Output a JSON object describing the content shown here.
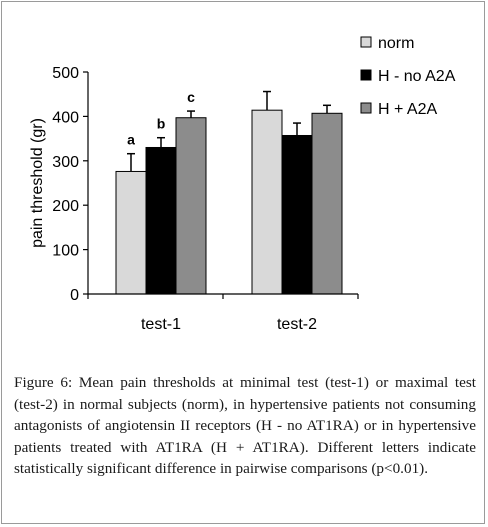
{
  "chart_data": {
    "type": "bar",
    "categories": [
      "test-1",
      "test-2"
    ],
    "series": [
      {
        "name": "norm",
        "values": [
          276,
          414
        ],
        "errors": [
          40,
          42
        ],
        "color": "#d9d9d9"
      },
      {
        "name": "H - no A2A",
        "values": [
          330,
          357
        ],
        "errors": [
          22,
          28
        ],
        "color": "#000000"
      },
      {
        "name": "H + A2A",
        "values": [
          397,
          407
        ],
        "errors": [
          15,
          18
        ],
        "color": "#8c8c8c"
      }
    ],
    "significance_letters": [
      {
        "category": "test-1",
        "series": "norm",
        "text": "a"
      },
      {
        "category": "test-1",
        "series": "H - no A2A",
        "text": "b"
      },
      {
        "category": "test-1",
        "series": "H + A2A",
        "text": "c"
      }
    ],
    "ylabel": "pain threshold (gr)",
    "xlabel": "",
    "ylim": [
      0,
      500
    ],
    "yticks": [
      0,
      100,
      200,
      300,
      400,
      500
    ],
    "grid": false,
    "legend_position": "top-right"
  },
  "caption": {
    "label": "Figure 6:",
    "text": " Mean pain thresholds at minimal test (test-1) or maximal test (test-2) in normal subjects (norm), in hypertensive patients not consuming antagonists of angiotensin II receptors (H - no AT1RA) or in hypertensive patients treated with AT1RA (H + AT1RA). Different letters indicate statistically significant difference in pairwise comparisons (p<0.01)."
  }
}
